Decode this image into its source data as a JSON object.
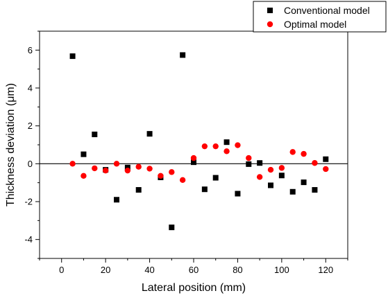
{
  "chart_data": {
    "type": "scatter",
    "xlabel": "Lateral position (mm)",
    "ylabel": "Thickness deviation (μm)",
    "xlim": [
      -10,
      130
    ],
    "ylim": [
      -5,
      7
    ],
    "xticks": [
      0,
      20,
      40,
      60,
      80,
      100,
      120
    ],
    "yticks": [
      -4,
      -2,
      0,
      2,
      4,
      6
    ],
    "legend_position": "top-right",
    "zero_line": true,
    "grid": false,
    "series": [
      {
        "name": "Conventional model",
        "marker": "square",
        "color": "#000000",
        "x": [
          5,
          10,
          15,
          20,
          25,
          30,
          35,
          40,
          45,
          50,
          55,
          60,
          65,
          70,
          75,
          80,
          85,
          90,
          95,
          100,
          105,
          110,
          115,
          120
        ],
        "y": [
          5.68,
          0.5,
          1.55,
          -0.32,
          -1.9,
          -0.2,
          -1.38,
          1.58,
          -0.72,
          -3.36,
          5.74,
          0.08,
          -1.35,
          -0.74,
          1.14,
          -1.58,
          -0.02,
          0.04,
          -1.14,
          -0.62,
          -1.48,
          -0.98,
          -1.38,
          0.24
        ]
      },
      {
        "name": "Optimal model",
        "marker": "circle",
        "color": "#ff0000",
        "x": [
          5,
          10,
          15,
          20,
          25,
          30,
          35,
          40,
          45,
          50,
          55,
          60,
          65,
          70,
          75,
          80,
          85,
          90,
          95,
          100,
          105,
          110,
          115,
          120
        ],
        "y": [
          0.0,
          -0.64,
          -0.24,
          -0.36,
          0.0,
          -0.36,
          -0.16,
          -0.26,
          -0.64,
          -0.44,
          -0.86,
          0.3,
          0.92,
          0.92,
          0.66,
          0.98,
          0.3,
          -0.7,
          -0.32,
          -0.22,
          0.62,
          0.52,
          0.04,
          -0.28
        ]
      }
    ]
  }
}
